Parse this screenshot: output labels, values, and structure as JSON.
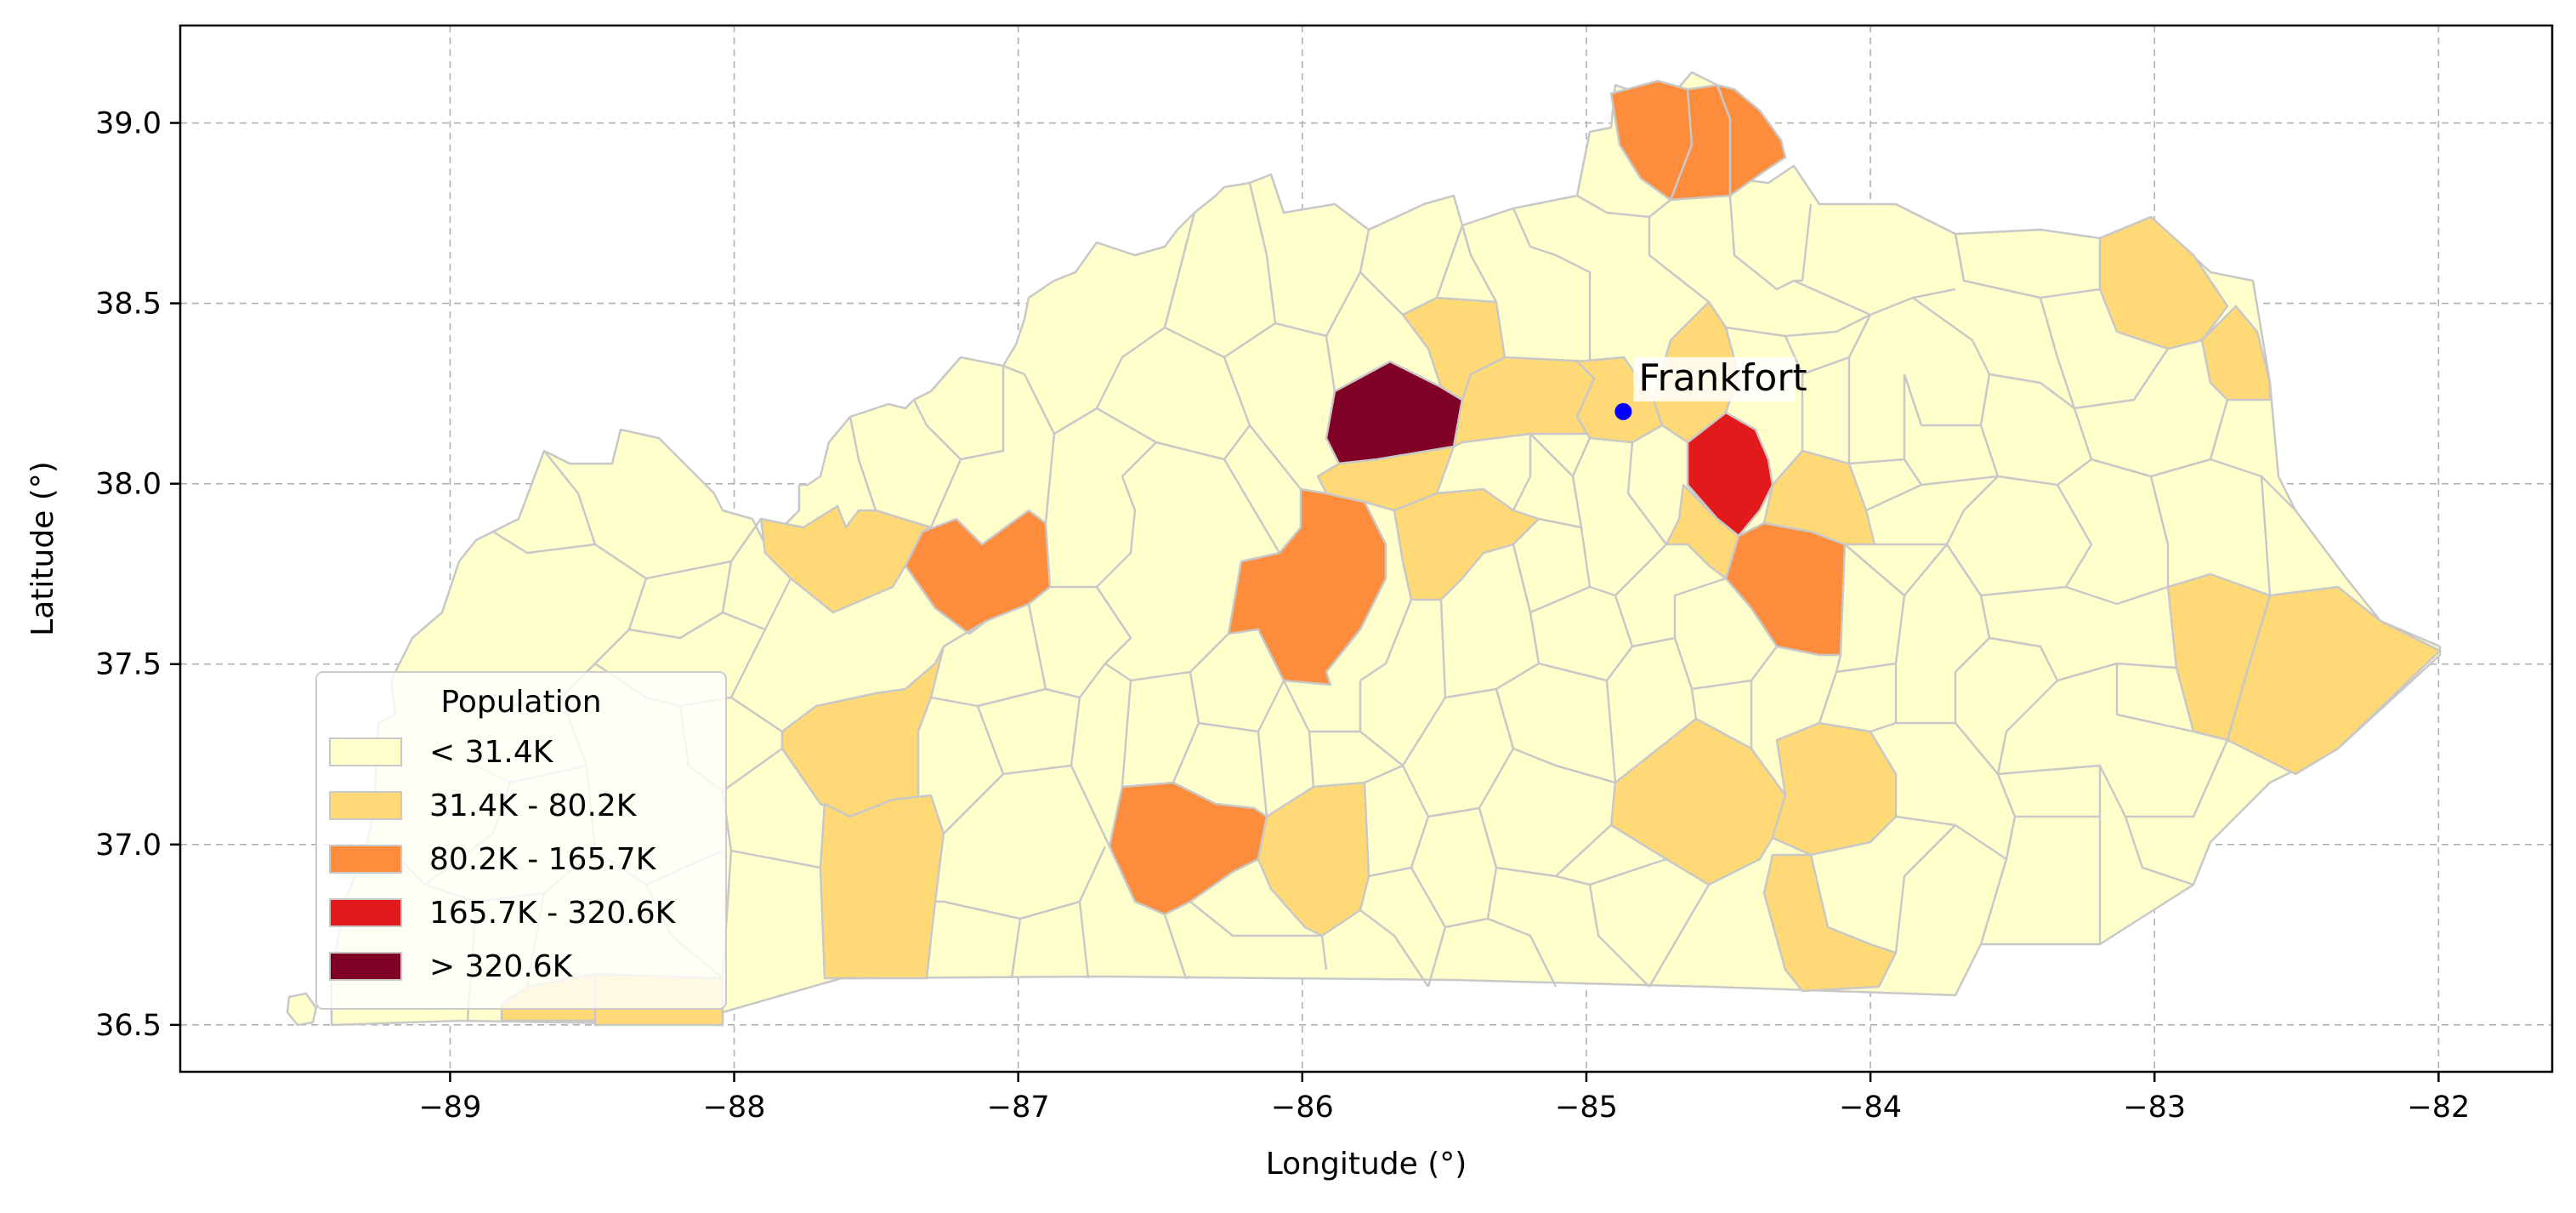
{
  "map": {
    "xlabel": "Longitude (°)",
    "ylabel": "Latitude (°)",
    "xlim": [
      -89.95,
      -81.6
    ],
    "ylim": [
      36.37,
      39.27
    ],
    "x_ticks": [
      -89,
      -88,
      -87,
      -86,
      -85,
      -84,
      -83,
      -82
    ],
    "x_tick_labels": [
      "−89",
      "−88",
      "−87",
      "−86",
      "−85",
      "−84",
      "−83",
      "−82"
    ],
    "y_ticks": [
      36.5,
      37.0,
      37.5,
      38.0,
      38.5,
      39.0
    ],
    "y_tick_labels": [
      "36.5",
      "37.0",
      "37.5",
      "38.0",
      "38.5",
      "39.0"
    ],
    "grid": true,
    "colors": {
      "class_0": "#ffffcc",
      "class_1": "#fed976",
      "class_2": "#fd8d3c",
      "class_3": "#e31a1c",
      "class_4": "#800026",
      "border": "#c8c8c8",
      "city_marker": "#0000ff"
    },
    "legend": {
      "title": "Population",
      "placement": "lower-left",
      "items": [
        {
          "label": "< 31.4K",
          "color": "#ffffcc"
        },
        {
          "label": "31.4K - 80.2K",
          "color": "#fed976"
        },
        {
          "label": "80.2K - 165.7K",
          "color": "#fd8d3c"
        },
        {
          "label": "165.7K - 320.6K",
          "color": "#e31a1c"
        },
        {
          "label": "> 320.6K",
          "color": "#800026"
        }
      ]
    },
    "capital": {
      "name": "Frankfort",
      "lon": -84.87,
      "lat": 38.2
    }
  }
}
